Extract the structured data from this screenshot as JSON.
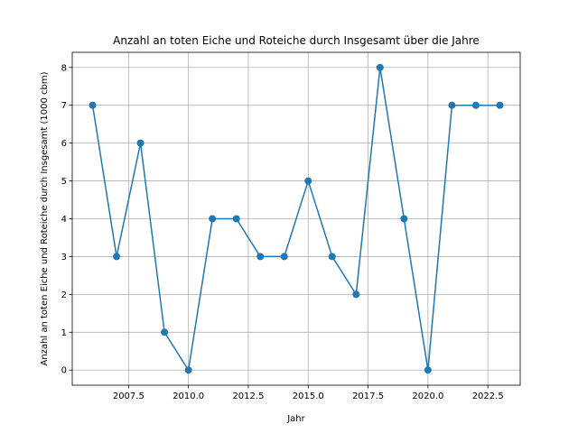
{
  "chart_data": {
    "type": "line",
    "title": "Anzahl an toten Eiche und Roteiche durch Insgesamt über die Jahre",
    "xlabel": "Jahr",
    "ylabel": "Anzahl an toten Eiche und Roteiche durch Insgesamt (1000 cbm)",
    "x": [
      2006,
      2007,
      2008,
      2009,
      2010,
      2011,
      2012,
      2013,
      2014,
      2015,
      2016,
      2017,
      2018,
      2019,
      2020,
      2021,
      2022,
      2023
    ],
    "series": [
      {
        "values": [
          7,
          3,
          6,
          1,
          0,
          4,
          4,
          3,
          3,
          5,
          3,
          2,
          8,
          4,
          0,
          7,
          7,
          7
        ]
      }
    ],
    "xticks": [
      2007.5,
      2010.0,
      2012.5,
      2015.0,
      2017.5,
      2020.0,
      2022.5
    ],
    "xtick_labels": [
      "2007.5",
      "2010.0",
      "2012.5",
      "2015.0",
      "2017.5",
      "2020.0",
      "2022.5"
    ],
    "yticks": [
      0,
      1,
      2,
      3,
      4,
      5,
      6,
      7,
      8
    ],
    "yticks_labels": [
      "0",
      "1",
      "2",
      "3",
      "4",
      "5",
      "6",
      "7",
      "8"
    ],
    "xlim": [
      2005.15,
      2023.85
    ],
    "ylim": [
      -0.4,
      8.4
    ],
    "grid": true,
    "marker": "circle",
    "color": "#1f77b4"
  }
}
